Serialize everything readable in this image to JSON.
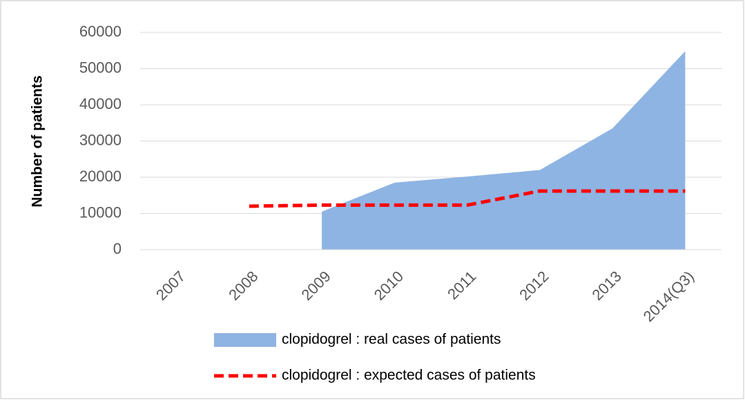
{
  "chart_data": {
    "type": "area-line",
    "y_label": "Number of patients",
    "categories": [
      "2007",
      "2008",
      "2009",
      "2010",
      "2011",
      "2012",
      "2013",
      "2014(Q3)"
    ],
    "series": [
      {
        "name": "clopidogrel : real cases of patients",
        "kind": "area",
        "color": "#8eb4e3",
        "values": [
          null,
          null,
          10500,
          18500,
          20200,
          22000,
          33500,
          54800
        ]
      },
      {
        "name": "clopidogrel : expected cases of patients",
        "kind": "dashed-line",
        "color": "#ff0000",
        "values": [
          null,
          12000,
          12300,
          12300,
          12300,
          16200,
          16200,
          16200
        ]
      }
    ],
    "ylim": [
      0,
      60000
    ],
    "yticks": [
      0,
      10000,
      20000,
      30000,
      40000,
      50000,
      60000
    ],
    "grid": true
  }
}
